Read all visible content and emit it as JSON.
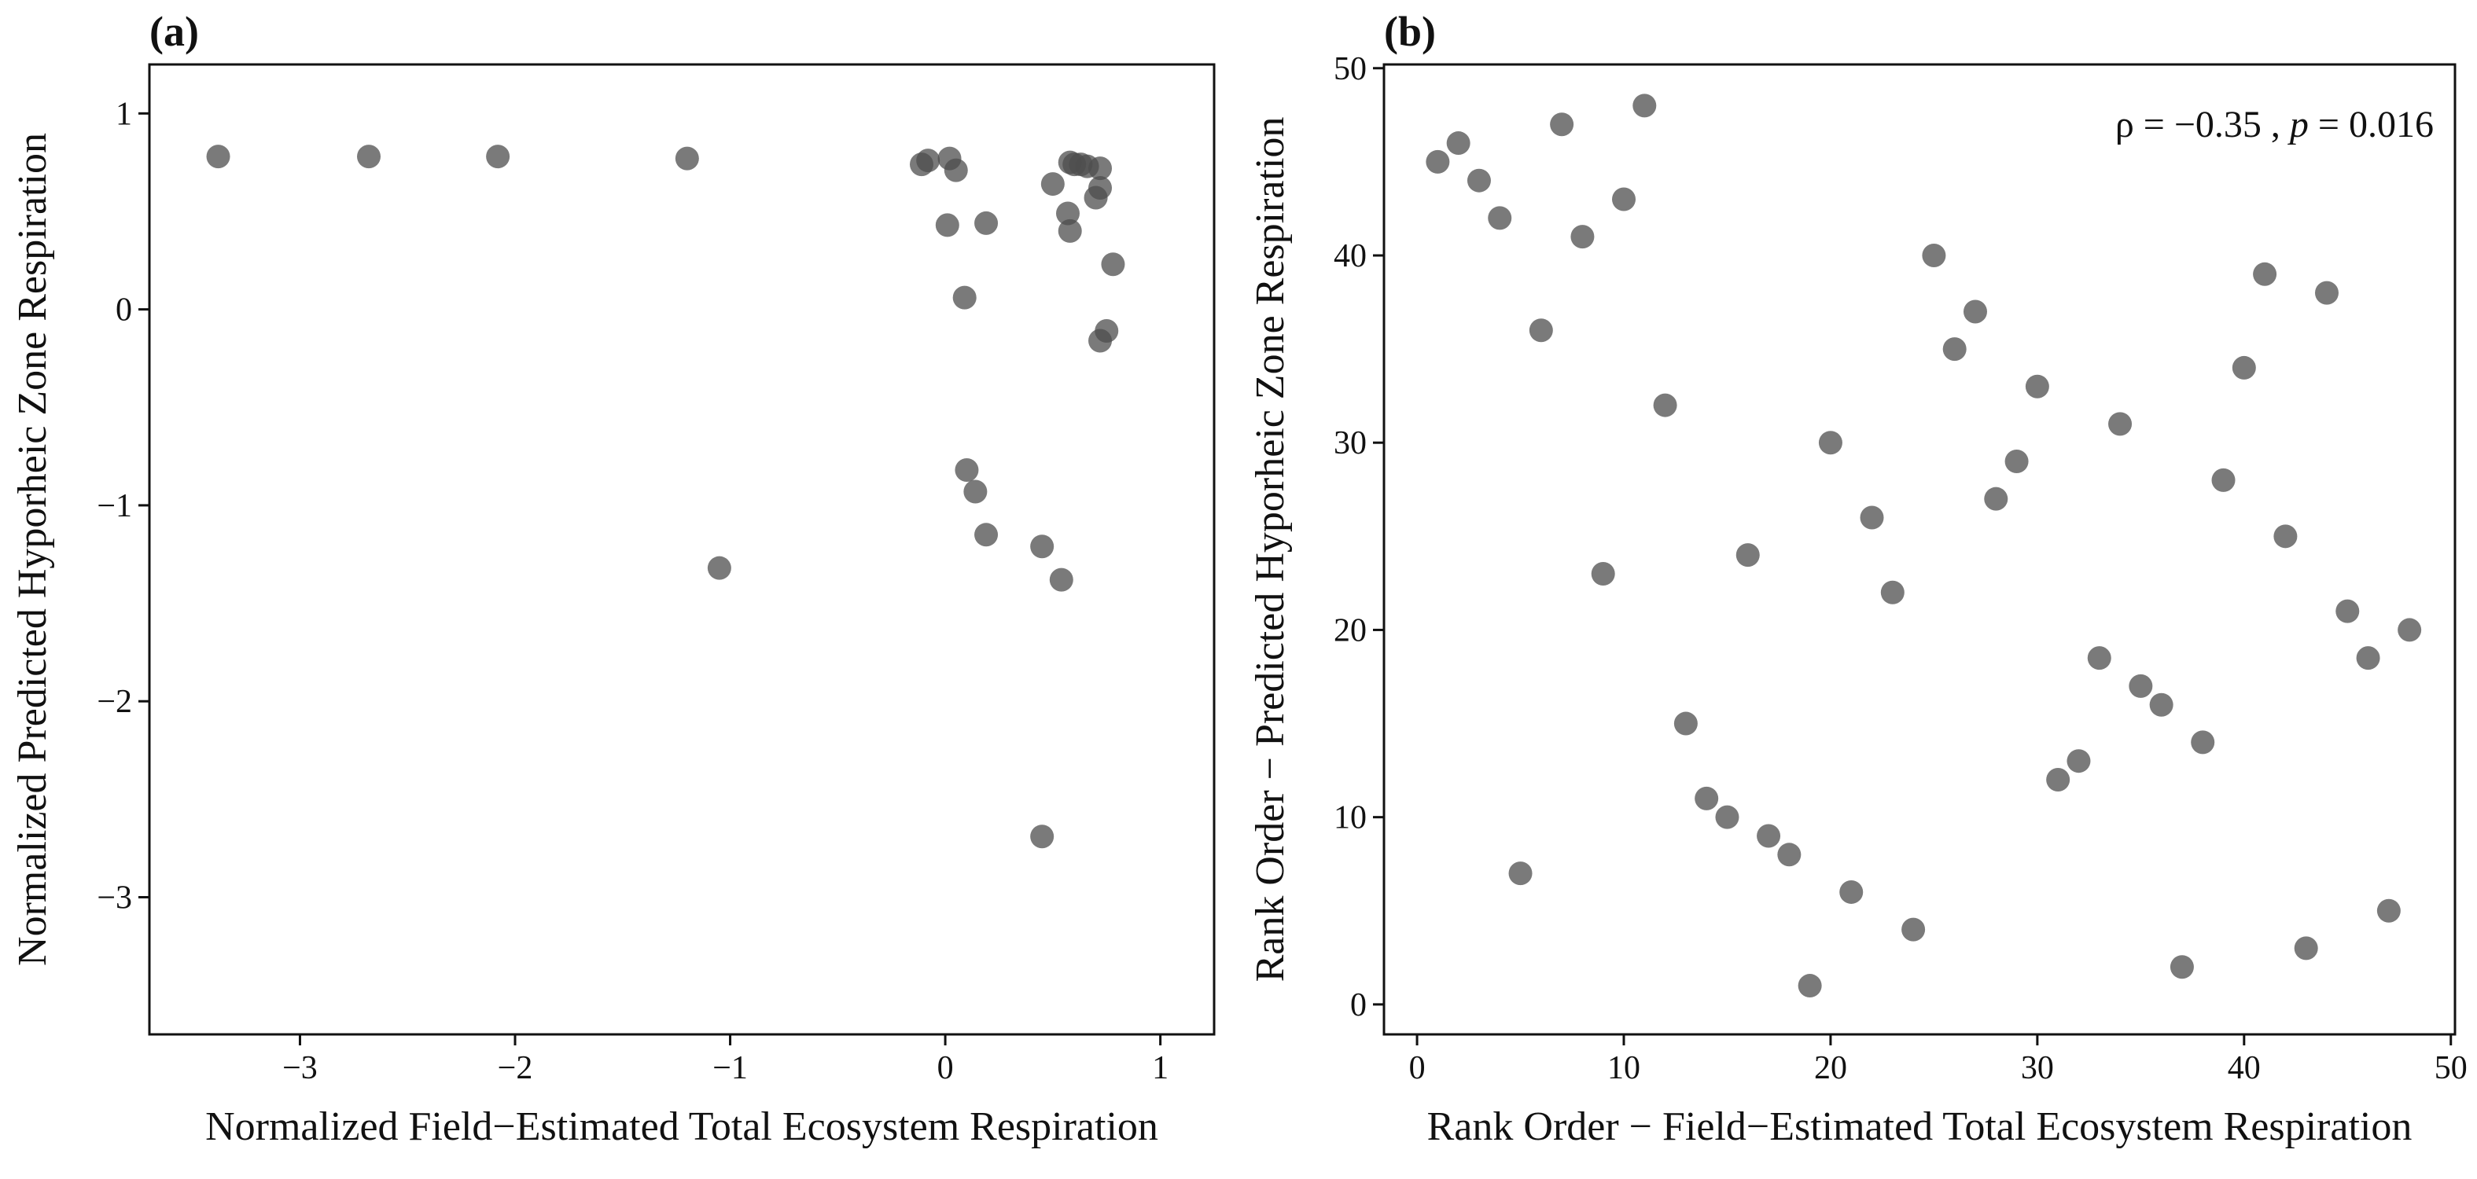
{
  "chart_data": [
    {
      "type": "scatter",
      "panel_label": "(a)",
      "title": "",
      "xlabel": "Normalized Field−Estimated Total Ecosystem Respiration",
      "ylabel": "Normalized Predicted Hyporheic Zone Respiration",
      "xlim": [
        -3.7,
        1.25
      ],
      "ylim": [
        -3.7,
        1.25
      ],
      "xticks": [
        -3,
        -2,
        -1,
        0,
        1
      ],
      "yticks": [
        -3,
        -2,
        -1,
        0,
        1
      ],
      "xtick_labels": [
        "−3",
        "−2",
        "−1",
        "0",
        "1"
      ],
      "ytick_labels": [
        "−3",
        "−2",
        "−1",
        "0",
        "1"
      ],
      "grid": false,
      "legend": "none",
      "marker_color": "#4d4d4d",
      "x": [
        -3.38,
        -2.68,
        -2.08,
        -1.2,
        -1.05,
        -0.11,
        -0.08,
        0.02,
        0.05,
        0.01,
        0.09,
        0.19,
        0.1,
        0.14,
        0.19,
        0.45,
        0.5,
        0.54,
        0.58,
        0.6,
        0.63,
        0.66,
        0.57,
        0.58,
        0.72,
        0.7,
        0.72,
        0.78,
        0.75,
        0.72,
        0.45
      ],
      "y": [
        0.78,
        0.78,
        0.78,
        0.77,
        -1.32,
        0.74,
        0.76,
        0.77,
        0.71,
        0.43,
        0.06,
        0.44,
        -0.82,
        -0.93,
        -1.15,
        -1.21,
        0.64,
        -1.38,
        0.75,
        0.74,
        0.74,
        0.73,
        0.49,
        0.4,
        0.72,
        0.57,
        0.62,
        0.23,
        -0.11,
        -0.16,
        -2.69
      ]
    },
    {
      "type": "scatter",
      "panel_label": "(b)",
      "title": "",
      "xlabel": "Rank Order − Field−Estimated Total Ecosystem Respiration",
      "ylabel": "Rank Order − Predicted Hyporheic Zone Respiration",
      "xlim": [
        -1.6,
        50.2
      ],
      "ylim": [
        -1.6,
        50.2
      ],
      "xticks": [
        0,
        10,
        20,
        30,
        40,
        50
      ],
      "yticks": [
        0,
        10,
        20,
        30,
        40,
        50
      ],
      "xtick_labels": [
        "0",
        "10",
        "20",
        "30",
        "40",
        "50"
      ],
      "ytick_labels": [
        "0",
        "10",
        "20",
        "30",
        "40",
        "50"
      ],
      "grid": false,
      "legend": "none",
      "marker_color": "#4d4d4d",
      "annotation": {
        "rho": "ρ = −0.35 , ",
        "p_symbol": "p",
        "p_value": " = 0.016",
        "placement": "top-right"
      },
      "x": [
        1,
        2,
        3,
        4,
        5,
        6,
        7,
        8,
        9,
        10,
        11,
        12,
        13,
        14,
        15,
        16,
        17,
        18,
        19,
        20,
        21,
        22,
        23,
        24,
        25,
        26,
        27,
        28,
        29,
        30,
        31,
        32,
        33,
        34,
        35,
        36,
        37,
        38,
        39,
        40,
        41,
        42,
        43,
        44,
        45,
        46,
        47,
        48
      ],
      "y": [
        45,
        46,
        44,
        42,
        7,
        36,
        47,
        41,
        23,
        43,
        48,
        32,
        15,
        11,
        10,
        24,
        9,
        8,
        1,
        30,
        6,
        26,
        22,
        4,
        40,
        35,
        37,
        27,
        29,
        33,
        12,
        13,
        18.5,
        31,
        17,
        16,
        2,
        14,
        28,
        34,
        39,
        25,
        3,
        38,
        21,
        18.5,
        5,
        20
      ]
    }
  ]
}
